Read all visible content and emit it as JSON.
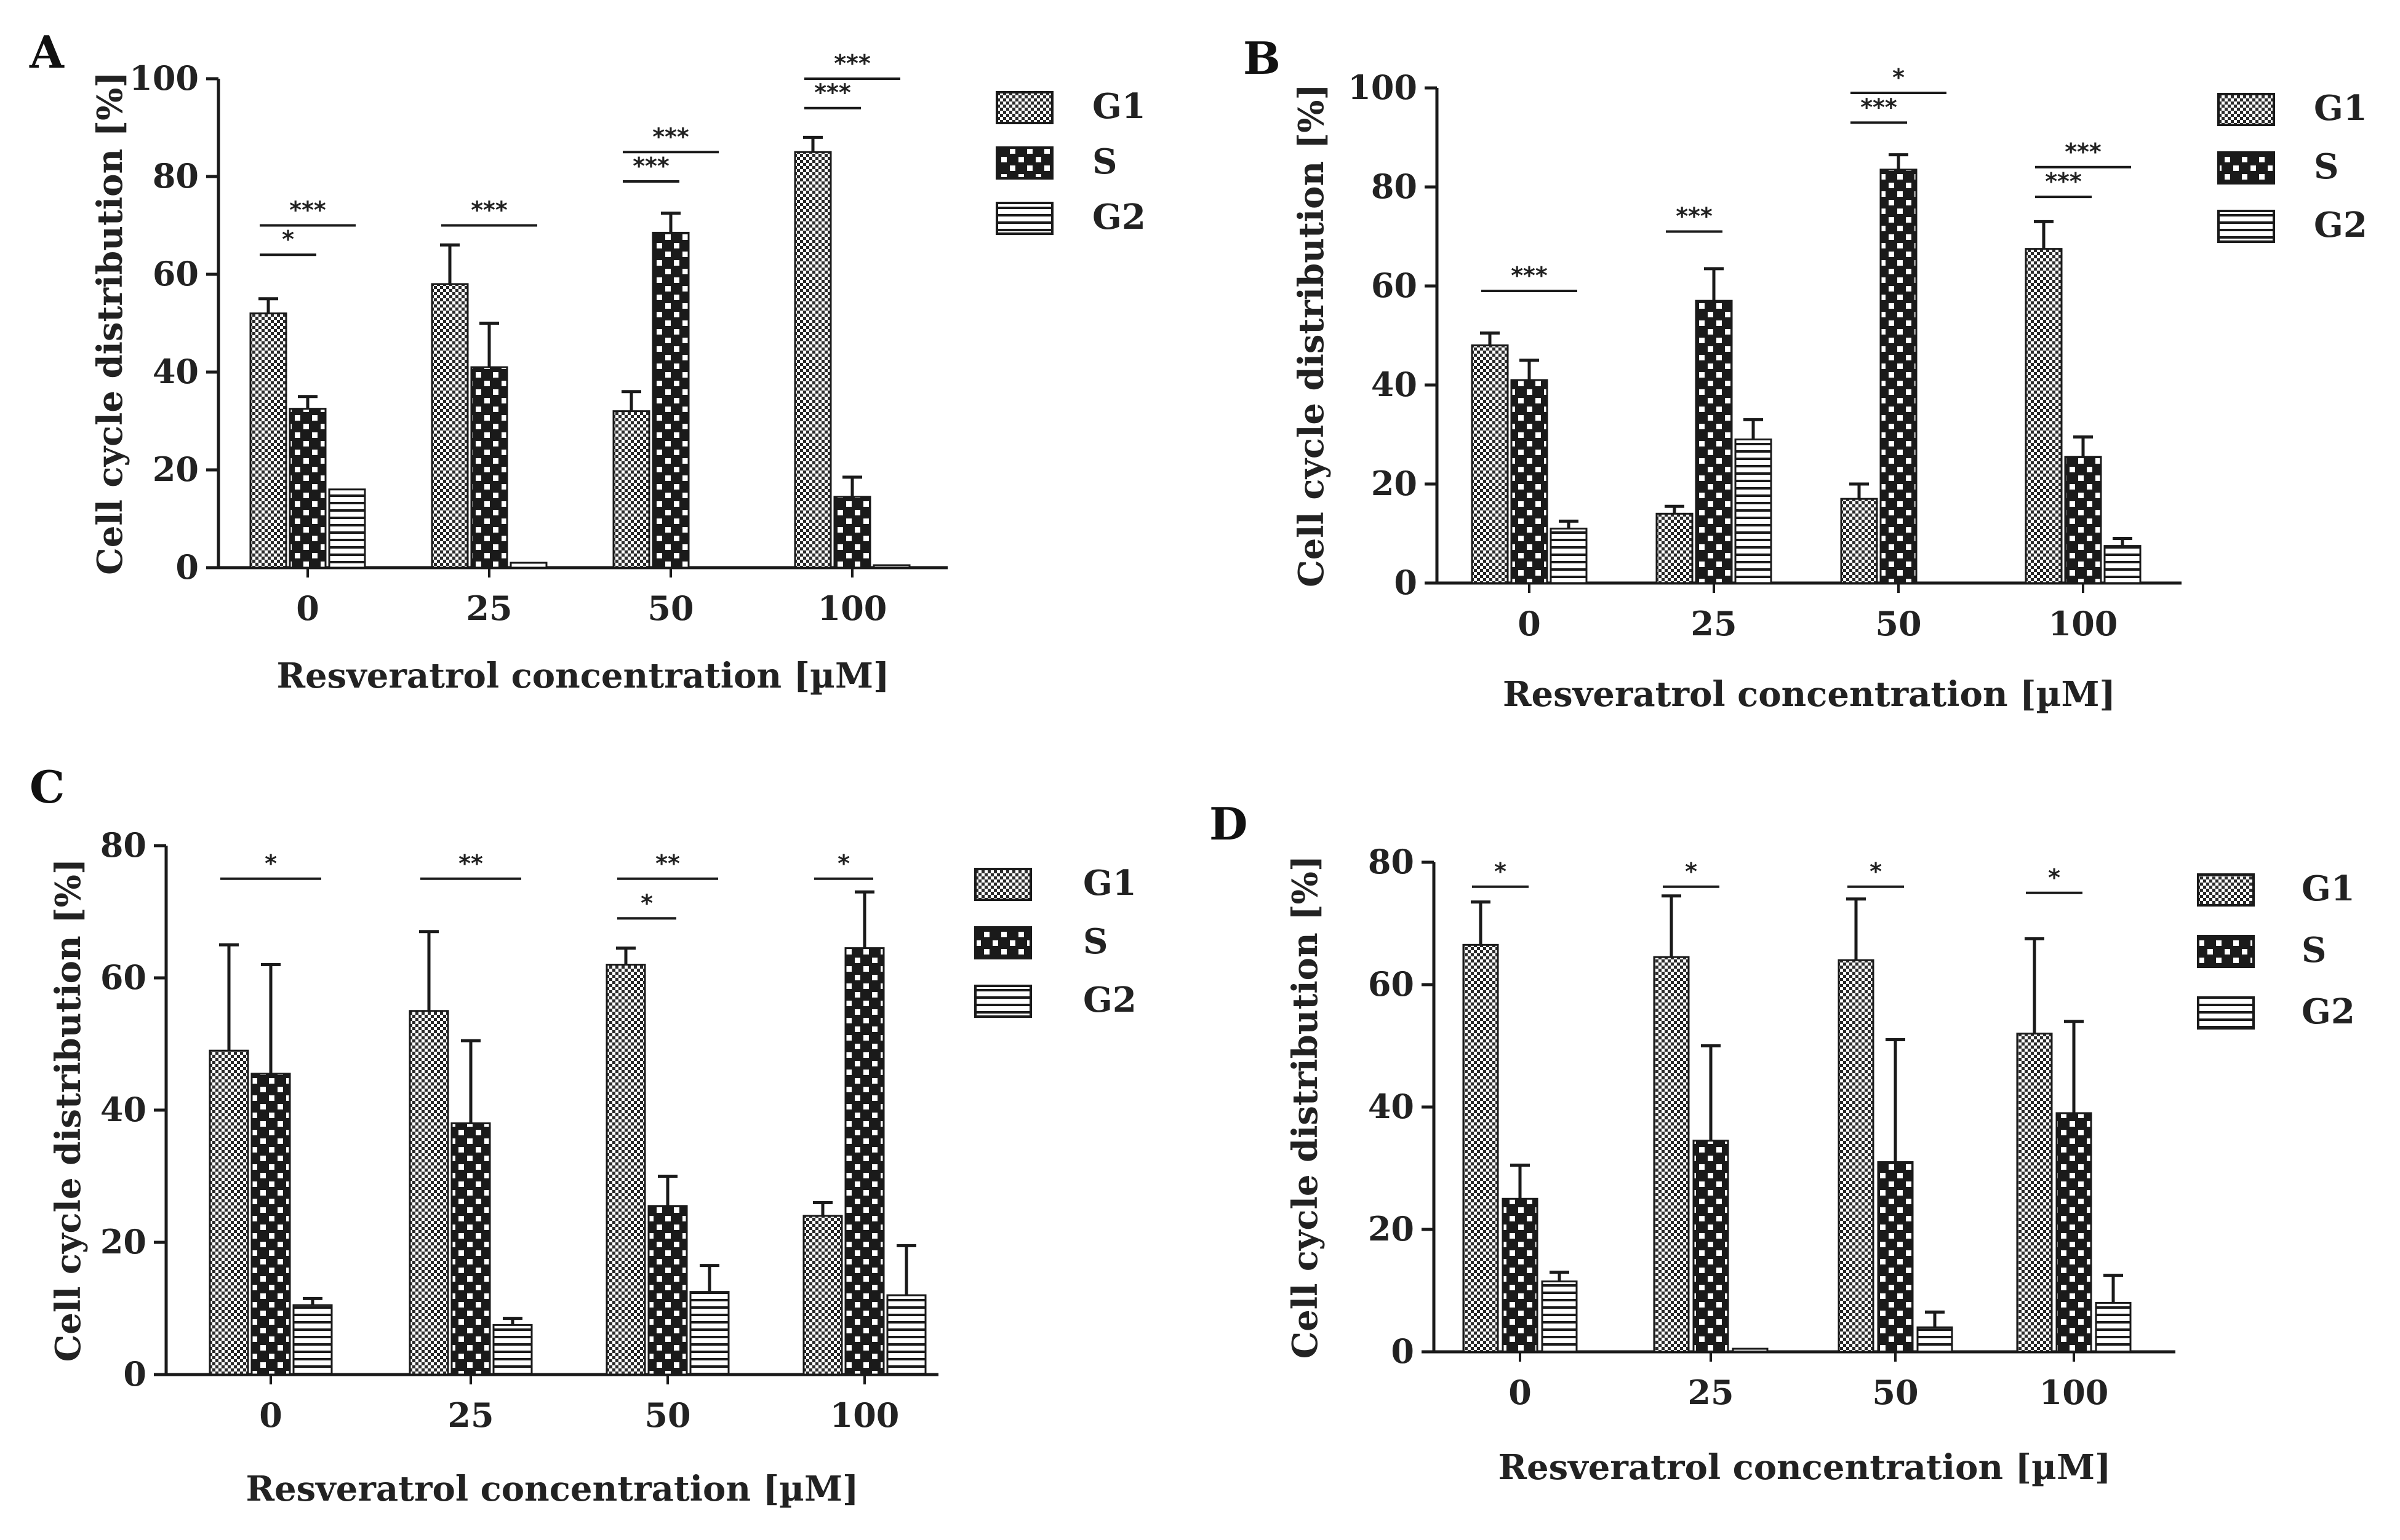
{
  "figure": {
    "colors": {
      "ink": "#1a1a1a",
      "G1": "#2b2b2b",
      "S": "#1a1a1a",
      "G2": "#1a1a1a"
    },
    "legend": [
      "G1",
      "S",
      "G2"
    ]
  },
  "chart_data": [
    {
      "panel": "A",
      "type": "bar",
      "title": "",
      "xlabel": "Resveratrol concentration [µM]",
      "ylabel": "Cell cycle distribution [%]",
      "categories": [
        "0",
        "25",
        "50",
        "100"
      ],
      "ylim": [
        0,
        100
      ],
      "yticks": [
        "0",
        "20",
        "40",
        "60",
        "80",
        "100"
      ],
      "series": [
        {
          "name": "G1",
          "values": [
            52,
            58,
            32,
            85
          ],
          "errors": [
            3,
            8,
            4,
            3
          ]
        },
        {
          "name": "S",
          "values": [
            32.5,
            41,
            68.5,
            14.5
          ],
          "errors": [
            2.5,
            9,
            4,
            4
          ]
        },
        {
          "name": "G2",
          "values": [
            16,
            1,
            0,
            0.5
          ],
          "errors": [
            0,
            0,
            0,
            0
          ]
        }
      ],
      "significance": [
        {
          "text": "*",
          "category": 0,
          "from": 0,
          "to": 1,
          "y": 64
        },
        {
          "text": "***",
          "category": 0,
          "from": 0,
          "to": 2,
          "y": 70
        },
        {
          "text": "***",
          "category": 1,
          "from": 0,
          "to": 2,
          "y": 70
        },
        {
          "text": "***",
          "category": 2,
          "from": 0,
          "to": 1,
          "y": 79
        },
        {
          "text": "***",
          "category": 2,
          "from": 0,
          "to": 2,
          "y": 85
        },
        {
          "text": "***",
          "category": 3,
          "from": 0,
          "to": 1,
          "y": 94
        },
        {
          "text": "***",
          "category": 3,
          "from": 0,
          "to": 2,
          "y": 100
        }
      ]
    },
    {
      "panel": "B",
      "type": "bar",
      "title": "",
      "xlabel": "Resveratrol concentration [µM]",
      "ylabel": "Cell cycle distribution [%]",
      "categories": [
        "0",
        "25",
        "50",
        "100"
      ],
      "ylim": [
        0,
        100
      ],
      "yticks": [
        "0",
        "20",
        "40",
        "60",
        "80",
        "100"
      ],
      "series": [
        {
          "name": "G1",
          "values": [
            48,
            14,
            17,
            67.5
          ],
          "errors": [
            2.5,
            1.5,
            3,
            5.5
          ]
        },
        {
          "name": "S",
          "values": [
            41,
            57,
            83.5,
            25.5
          ],
          "errors": [
            4,
            6.5,
            3,
            4
          ]
        },
        {
          "name": "G2",
          "values": [
            11,
            29,
            0,
            7.5
          ],
          "errors": [
            1.5,
            4,
            0,
            1.5
          ]
        }
      ],
      "significance": [
        {
          "text": "***",
          "category": 0,
          "from": 0,
          "to": 2,
          "y": 59
        },
        {
          "text": "***",
          "category": 1,
          "from": 0,
          "to": 1,
          "y": 71
        },
        {
          "text": "***",
          "category": 2,
          "from": 0,
          "to": 1,
          "y": 93
        },
        {
          "text": "*",
          "category": 2,
          "from": 0,
          "to": 2,
          "y": 99
        },
        {
          "text": "***",
          "category": 3,
          "from": 0,
          "to": 1,
          "y": 78
        },
        {
          "text": "***",
          "category": 3,
          "from": 0,
          "to": 2,
          "y": 84
        }
      ]
    },
    {
      "panel": "C",
      "type": "bar",
      "title": "",
      "xlabel": "Resveratrol concentration [µM]",
      "ylabel": "Cell cycle distribution [%]",
      "categories": [
        "0",
        "25",
        "50",
        "100"
      ],
      "ylim": [
        0,
        80
      ],
      "yticks": [
        "0",
        "20",
        "40",
        "60",
        "80"
      ],
      "series": [
        {
          "name": "G1",
          "values": [
            49,
            55,
            62,
            24
          ],
          "errors": [
            16,
            12,
            2.5,
            2
          ]
        },
        {
          "name": "S",
          "values": [
            45.5,
            38,
            25.5,
            64.5
          ],
          "errors": [
            16.5,
            12.5,
            4.5,
            8.5
          ]
        },
        {
          "name": "G2",
          "values": [
            10.5,
            7.5,
            12.5,
            12
          ],
          "errors": [
            1,
            1,
            4,
            7.5
          ]
        }
      ],
      "significance": [
        {
          "text": "*",
          "category": 0,
          "from": 0,
          "to": 2,
          "y": 75
        },
        {
          "text": "**",
          "category": 1,
          "from": 0,
          "to": 2,
          "y": 75
        },
        {
          "text": "*",
          "category": 2,
          "from": 0,
          "to": 1,
          "y": 69
        },
        {
          "text": "**",
          "category": 2,
          "from": 0,
          "to": 2,
          "y": 75
        },
        {
          "text": "*",
          "category": 3,
          "from": 0,
          "to": 1,
          "y": 75
        }
      ]
    },
    {
      "panel": "D",
      "type": "bar",
      "title": "",
      "xlabel": "Resveratrol concentration [µM]",
      "ylabel": "Cell cycle distribution [%]",
      "categories": [
        "0",
        "25",
        "50",
        "100"
      ],
      "ylim": [
        0,
        80
      ],
      "yticks": [
        "0",
        "20",
        "40",
        "60",
        "80"
      ],
      "series": [
        {
          "name": "G1",
          "values": [
            66.5,
            64.5,
            64,
            52
          ],
          "errors": [
            7,
            10,
            10,
            15.5
          ]
        },
        {
          "name": "S",
          "values": [
            25,
            34.5,
            31,
            39
          ],
          "errors": [
            5.5,
            15.5,
            20,
            15
          ]
        },
        {
          "name": "G2",
          "values": [
            11.5,
            0.5,
            4,
            8
          ],
          "errors": [
            1.5,
            0,
            2.5,
            4.5
          ]
        }
      ],
      "significance": [
        {
          "text": "*",
          "category": 0,
          "from": 0,
          "to": 1,
          "y": 76
        },
        {
          "text": "*",
          "category": 1,
          "from": 0,
          "to": 1,
          "y": 76
        },
        {
          "text": "*",
          "category": 2,
          "from": 0,
          "to": 1,
          "y": 76
        },
        {
          "text": "*",
          "category": 3,
          "from": 0,
          "to": 1,
          "y": 75
        }
      ]
    }
  ]
}
